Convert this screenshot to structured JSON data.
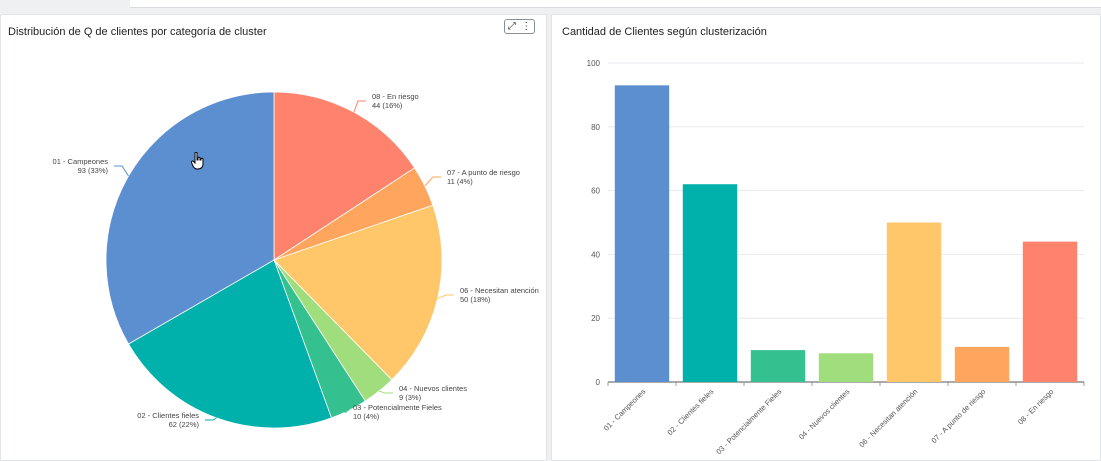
{
  "pie_card": {
    "title": "Distribución de Q de clientes por categoría de cluster",
    "toolbar": {
      "expand_icon": "expand-icon",
      "menu_icon": "more-vertical-icon"
    }
  },
  "bar_card": {
    "title": "Cantidad de Clientes según clusterización"
  },
  "colors": {
    "campeones": "#5b8fd0",
    "clientes_fieles": "#00b0aa",
    "potencialmente_fieles": "#35c18f",
    "nuevos_clientes": "#a0dd7c",
    "necesitan_atencion": "#ffc76a",
    "a_punto_de_riesgo": "#ffa55e",
    "en_riesgo": "#ff836c"
  },
  "chart_data": [
    {
      "type": "pie",
      "title": "Distribución de Q de clientes por categoría de cluster",
      "slices": [
        {
          "label": "08 - En riesgo",
          "value": 44,
          "pct_label": "44 (16%)"
        },
        {
          "label": "07 - A punto de riesgo",
          "value": 11,
          "pct_label": "11 (4%)"
        },
        {
          "label": "06 - Necesitan atención",
          "value": 50,
          "pct_label": "50 (18%)"
        },
        {
          "label": "04 - Nuevos clientes",
          "value": 9,
          "pct_label": "9 (3%)"
        },
        {
          "label": "03 - Potencialmente Fieles",
          "value": 10,
          "pct_label": "10 (4%)"
        },
        {
          "label": "02 - Clientes fieles",
          "value": 62,
          "pct_label": "62 (22%)"
        },
        {
          "label": "01 - Campeones",
          "value": 93,
          "pct_label": "93 (33%)"
        }
      ],
      "start": "top-clockwise",
      "legend": "none"
    },
    {
      "type": "bar",
      "title": "Cantidad de Clientes según clusterización",
      "categories": [
        "01 - Campeones",
        "02 - Clientes fieles",
        "03 - Potencialmente Fieles",
        "04 - Nuevos clientes",
        "06 - Necesitan atención",
        "07 - A punto de riesgo",
        "08 - En riesgo"
      ],
      "values": [
        93,
        62,
        10,
        9,
        50,
        11,
        44
      ],
      "ylim": [
        0,
        100
      ],
      "yticks": [
        "0",
        "20",
        "40",
        "60",
        "80",
        "100"
      ],
      "grid": true,
      "xlabel": "",
      "ylabel": ""
    }
  ]
}
